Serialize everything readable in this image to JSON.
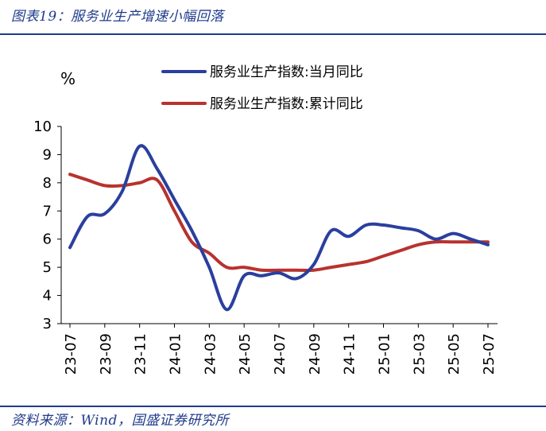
{
  "header": {
    "title": "图表19：服务业生产增速小幅回落",
    "source": "资料来源：Wind，国盛证券研究所"
  },
  "colors": {
    "accent": "#1F3B8C",
    "title_text": "#1F3B8C",
    "series_monthly": "#2A3F9E",
    "series_cumulative": "#B8322E"
  },
  "chart_data": {
    "type": "line",
    "unit": "%",
    "ylim": [
      3,
      10
    ],
    "yticks": [
      3,
      4,
      5,
      6,
      7,
      8,
      9,
      10
    ],
    "grid": false,
    "legend_position": "top",
    "x": [
      "23-07",
      "23-08",
      "23-09",
      "23-10",
      "23-11",
      "23-12",
      "24-01",
      "24-02",
      "24-03",
      "24-04",
      "24-05",
      "24-06",
      "24-07",
      "24-08",
      "24-09",
      "24-10",
      "24-11",
      "24-12",
      "25-01",
      "25-02",
      "25-03",
      "25-04",
      "25-05",
      "25-06",
      "25-07"
    ],
    "xtick_labels": [
      "23-07",
      "23-09",
      "23-11",
      "24-01",
      "24-03",
      "24-05",
      "24-07",
      "24-09",
      "24-11",
      "25-01",
      "25-03",
      "25-05",
      "25-07"
    ],
    "series": [
      {
        "name": "服务业生产指数:当月同比",
        "color": "#2A3F9E",
        "values": [
          5.7,
          6.8,
          6.9,
          7.7,
          9.3,
          8.5,
          7.4,
          6.3,
          5.0,
          3.5,
          4.7,
          4.7,
          4.8,
          4.6,
          5.1,
          6.3,
          6.1,
          6.5,
          6.5,
          6.4,
          6.3,
          6.0,
          6.2,
          6.0,
          5.8
        ]
      },
      {
        "name": "服务业生产指数:累计同比",
        "color": "#B8322E",
        "values": [
          8.3,
          8.1,
          7.9,
          7.9,
          8.0,
          8.1,
          7.0,
          5.9,
          5.5,
          5.0,
          5.0,
          4.9,
          4.9,
          4.9,
          4.9,
          5.0,
          5.1,
          5.2,
          5.4,
          5.6,
          5.8,
          5.9,
          5.9,
          5.9,
          5.9
        ]
      }
    ]
  }
}
